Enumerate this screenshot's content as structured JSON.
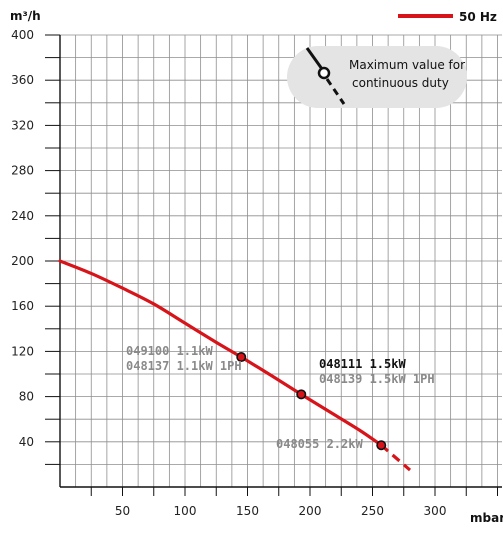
{
  "chart_data": {
    "type": "line",
    "ylabel": "m³/h",
    "xlabel": "mbar",
    "xlim": [
      0,
      300
    ],
    "ylim": [
      0,
      400
    ],
    "x_ticks": [
      50,
      100,
      150,
      200,
      250,
      300
    ],
    "y_ticks": [
      40,
      80,
      120,
      160,
      200,
      240,
      280,
      320,
      360,
      400
    ],
    "grid": true,
    "legend": {
      "position": "top-right",
      "label": "50 Hz",
      "color": "#d7141a"
    },
    "series": [
      {
        "name": "50 Hz",
        "color": "#d7141a",
        "x": [
          0,
          25,
          50,
          75,
          100,
          125,
          145,
          170,
          193,
          215,
          240,
          257
        ],
        "y": [
          200,
          189,
          176,
          162,
          145,
          128,
          115,
          98,
          82,
          67,
          50,
          37
        ]
      }
    ],
    "continuation": {
      "x": [
        257,
        280
      ],
      "y": [
        37,
        15
      ],
      "style": "dashed"
    },
    "markers": [
      {
        "x": 145,
        "y": 115,
        "labels": [
          "049100 1.1kW",
          "048137 1.1kW 1PH"
        ],
        "style": "gray",
        "placement": "left"
      },
      {
        "x": 193,
        "y": 82,
        "labels": [
          "048111 1.5kW",
          "048139 1.5kW 1PH"
        ],
        "style": "mixed",
        "placement": "right"
      },
      {
        "x": 257,
        "y": 37,
        "labels": [
          "048055 2.2kW"
        ],
        "style": "gray",
        "placement": "left"
      }
    ],
    "annotation": {
      "lines": [
        "Maximum value for",
        "continuous duty"
      ],
      "icon": "dashed-probe-icon"
    }
  }
}
